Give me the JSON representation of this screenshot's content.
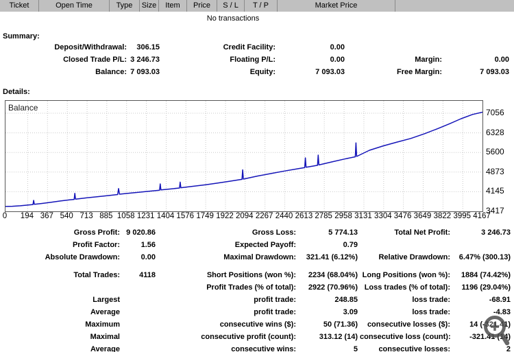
{
  "table_header": {
    "columns": [
      "Ticket",
      "Open Time",
      "Type",
      "Size",
      "Item",
      "Price",
      "S / L",
      "T / P",
      "Market Price"
    ]
  },
  "messages": {
    "no_transactions": "No transactions"
  },
  "summary": {
    "title": "Summary:",
    "rows": [
      {
        "c1": {
          "label": "Deposit/Withdrawal:",
          "value": "306.15"
        },
        "c2": {
          "label": "Credit Facility:",
          "value": "0.00"
        }
      },
      {
        "c1": {
          "label": "Closed Trade P/L:",
          "value": "3 246.73"
        },
        "c2": {
          "label": "Floating P/L:",
          "value": "0.00"
        },
        "c3": {
          "label": "Margin:",
          "value": "0.00"
        }
      },
      {
        "c1": {
          "label": "Balance:",
          "value": "7 093.03"
        },
        "c2": {
          "label": "Equity:",
          "value": "7 093.03"
        },
        "c3": {
          "label": "Free Margin:",
          "value": "7 093.03"
        }
      }
    ]
  },
  "details": {
    "title": "Details:",
    "block1": [
      {
        "c1": {
          "label": "Gross Profit:",
          "value": "9 020.86"
        },
        "c2": {
          "label": "Gross Loss:",
          "value": "5 774.13"
        },
        "c3": {
          "label": "Total Net Profit:",
          "value": "3 246.73"
        }
      },
      {
        "c1": {
          "label": "Profit Factor:",
          "value": "1.56"
        },
        "c2": {
          "label": "Expected Payoff:",
          "value": "0.79"
        }
      },
      {
        "c1": {
          "label": "Absolute Drawdown:",
          "value": "0.00"
        },
        "c2": {
          "label": "Maximal Drawdown:",
          "value": "321.41 (6.12%)"
        },
        "c3": {
          "label": "Relative Drawdown:",
          "value": "6.47% (300.13)"
        }
      }
    ],
    "block2": [
      {
        "c1": {
          "label": "Total Trades:",
          "value": "4118"
        },
        "c2": {
          "label": "Short Positions (won %):",
          "value": "2234 (68.04%)"
        },
        "c3": {
          "label": "Long Positions (won %):",
          "value": "1884 (74.42%)"
        }
      },
      {
        "c2": {
          "label": "Profit Trades (% of total):",
          "value": "2922 (70.96%)"
        },
        "c3": {
          "label": "Loss trades (% of total):",
          "value": "1196 (29.04%)"
        }
      },
      {
        "c1": {
          "label": "Largest",
          "value": ""
        },
        "c2": {
          "label": "profit trade:",
          "value": "248.85"
        },
        "c3": {
          "label": "loss trade:",
          "value": "-68.91"
        }
      },
      {
        "c1": {
          "label": "Average",
          "value": ""
        },
        "c2": {
          "label": "profit trade:",
          "value": "3.09"
        },
        "c3": {
          "label": "loss trade:",
          "value": "-4.83"
        }
      },
      {
        "c1": {
          "label": "Maximum",
          "value": ""
        },
        "c2": {
          "label": "consecutive wins ($):",
          "value": "50 (71.36)"
        },
        "c3": {
          "label": "consecutive losses ($):",
          "value": "14 (-321.41)"
        }
      },
      {
        "c1": {
          "label": "Maximal",
          "value": ""
        },
        "c2": {
          "label": "consecutive profit (count):",
          "value": "313.12 (14)"
        },
        "c3": {
          "label": "consecutive loss (count):",
          "value": "-321.41 (14)"
        }
      },
      {
        "c1": {
          "label": "Average",
          "value": ""
        },
        "c2": {
          "label": "consecutive wins:",
          "value": "5"
        },
        "c3": {
          "label": "consecutive losses:",
          "value": "2"
        }
      }
    ]
  },
  "chart_data": {
    "type": "line",
    "title": "Balance",
    "grid": "dashed",
    "legend_position": "none",
    "line_color": "#1414b8",
    "grid_color": "#c9c9c9",
    "xlim": [
      0,
      4167
    ],
    "ylim": [
      3417,
      7513
    ],
    "x_ticks": [
      0,
      194,
      367,
      540,
      713,
      885,
      1058,
      1231,
      1404,
      1576,
      1749,
      1922,
      2094,
      2267,
      2440,
      2613,
      2785,
      2958,
      3131,
      3304,
      3476,
      3649,
      3822,
      3995,
      4167
    ],
    "y_ticks": [
      3417,
      4145,
      4873,
      5600,
      6328,
      7056
    ],
    "series": [
      {
        "name": "Balance",
        "points": [
          [
            0,
            3598
          ],
          [
            60,
            3605
          ],
          [
            130,
            3622
          ],
          [
            200,
            3650
          ],
          [
            240,
            3668
          ],
          [
            246,
            3825
          ],
          [
            252,
            3676
          ],
          [
            320,
            3710
          ],
          [
            400,
            3755
          ],
          [
            480,
            3800
          ],
          [
            560,
            3842
          ],
          [
            600,
            3860
          ],
          [
            606,
            4085
          ],
          [
            612,
            3870
          ],
          [
            700,
            3912
          ],
          [
            800,
            3958
          ],
          [
            900,
            4002
          ],
          [
            980,
            4040
          ],
          [
            988,
            4262
          ],
          [
            996,
            4052
          ],
          [
            1100,
            4098
          ],
          [
            1200,
            4140
          ],
          [
            1290,
            4178
          ],
          [
            1346,
            4200
          ],
          [
            1352,
            4435
          ],
          [
            1358,
            4210
          ],
          [
            1450,
            4252
          ],
          [
            1520,
            4283
          ],
          [
            1526,
            4500
          ],
          [
            1532,
            4292
          ],
          [
            1650,
            4352
          ],
          [
            1750,
            4405
          ],
          [
            1850,
            4462
          ],
          [
            1950,
            4525
          ],
          [
            2050,
            4592
          ],
          [
            2066,
            4602
          ],
          [
            2072,
            4955
          ],
          [
            2078,
            4612
          ],
          [
            2200,
            4725
          ],
          [
            2320,
            4820
          ],
          [
            2440,
            4912
          ],
          [
            2560,
            5000
          ],
          [
            2614,
            5040
          ],
          [
            2620,
            5398
          ],
          [
            2626,
            5052
          ],
          [
            2680,
            5092
          ],
          [
            2726,
            5125
          ],
          [
            2732,
            5502
          ],
          [
            2738,
            5138
          ],
          [
            2850,
            5248
          ],
          [
            2960,
            5355
          ],
          [
            3056,
            5440
          ],
          [
            3062,
            5955
          ],
          [
            3068,
            5452
          ],
          [
            3180,
            5680
          ],
          [
            3300,
            5845
          ],
          [
            3420,
            5985
          ],
          [
            3540,
            6120
          ],
          [
            3660,
            6295
          ],
          [
            3780,
            6490
          ],
          [
            3880,
            6665
          ],
          [
            3980,
            6852
          ],
          [
            4080,
            7010
          ],
          [
            4167,
            7093
          ]
        ]
      }
    ]
  },
  "icons": {
    "zoom_cursor": "zoom-in-magnifier"
  }
}
